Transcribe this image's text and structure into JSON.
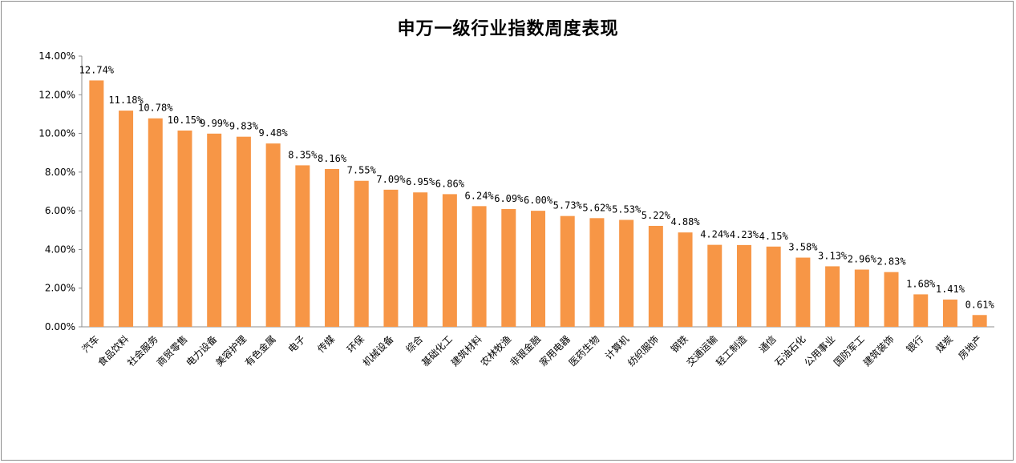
{
  "chart_data": {
    "type": "bar",
    "title": "申万一级行业指数周度表现",
    "xlabel": "",
    "ylabel": "",
    "ylim": [
      0,
      14
    ],
    "yticks": [
      "0.00%",
      "2.00%",
      "4.00%",
      "6.00%",
      "8.00%",
      "10.00%",
      "12.00%",
      "14.00%"
    ],
    "grid": false,
    "legend": "none",
    "bar_color": "#F79646",
    "categories": [
      "汽车",
      "食品饮料",
      "社会服务",
      "商贸零售",
      "电力设备",
      "美容护理",
      "有色金属",
      "电子",
      "传媒",
      "环保",
      "机械设备",
      "综合",
      "基础化工",
      "建筑材料",
      "农林牧渔",
      "非银金融",
      "家用电器",
      "医药生物",
      "计算机",
      "纺织服饰",
      "钢铁",
      "交通运输",
      "轻工制造",
      "通信",
      "石油石化",
      "公用事业",
      "国防军工",
      "建筑装饰",
      "银行",
      "煤炭",
      "房地产"
    ],
    "values": [
      12.74,
      11.18,
      10.78,
      10.15,
      9.99,
      9.83,
      9.48,
      8.35,
      8.16,
      7.55,
      7.09,
      6.95,
      6.86,
      6.24,
      6.09,
      6.0,
      5.73,
      5.62,
      5.53,
      5.22,
      4.88,
      4.24,
      4.23,
      4.15,
      3.58,
      3.13,
      2.96,
      2.83,
      1.68,
      1.41,
      0.61
    ],
    "data_labels": [
      "12.74%",
      "11.18%",
      "10.78%",
      "10.15%",
      "9.99%",
      "9.83%",
      "9.48%",
      "8.35%",
      "8.16%",
      "7.55%",
      "7.09%",
      "6.95%",
      "6.86%",
      "6.24%",
      "6.09%",
      "6.00%",
      "5.73%",
      "5.62%",
      "5.53%",
      "5.22%",
      "4.88%",
      "4.24%",
      "4.23%",
      "4.15%",
      "3.58%",
      "3.13%",
      "2.96%",
      "2.83%",
      "1.68%",
      "1.41%",
      "0.61%"
    ]
  }
}
